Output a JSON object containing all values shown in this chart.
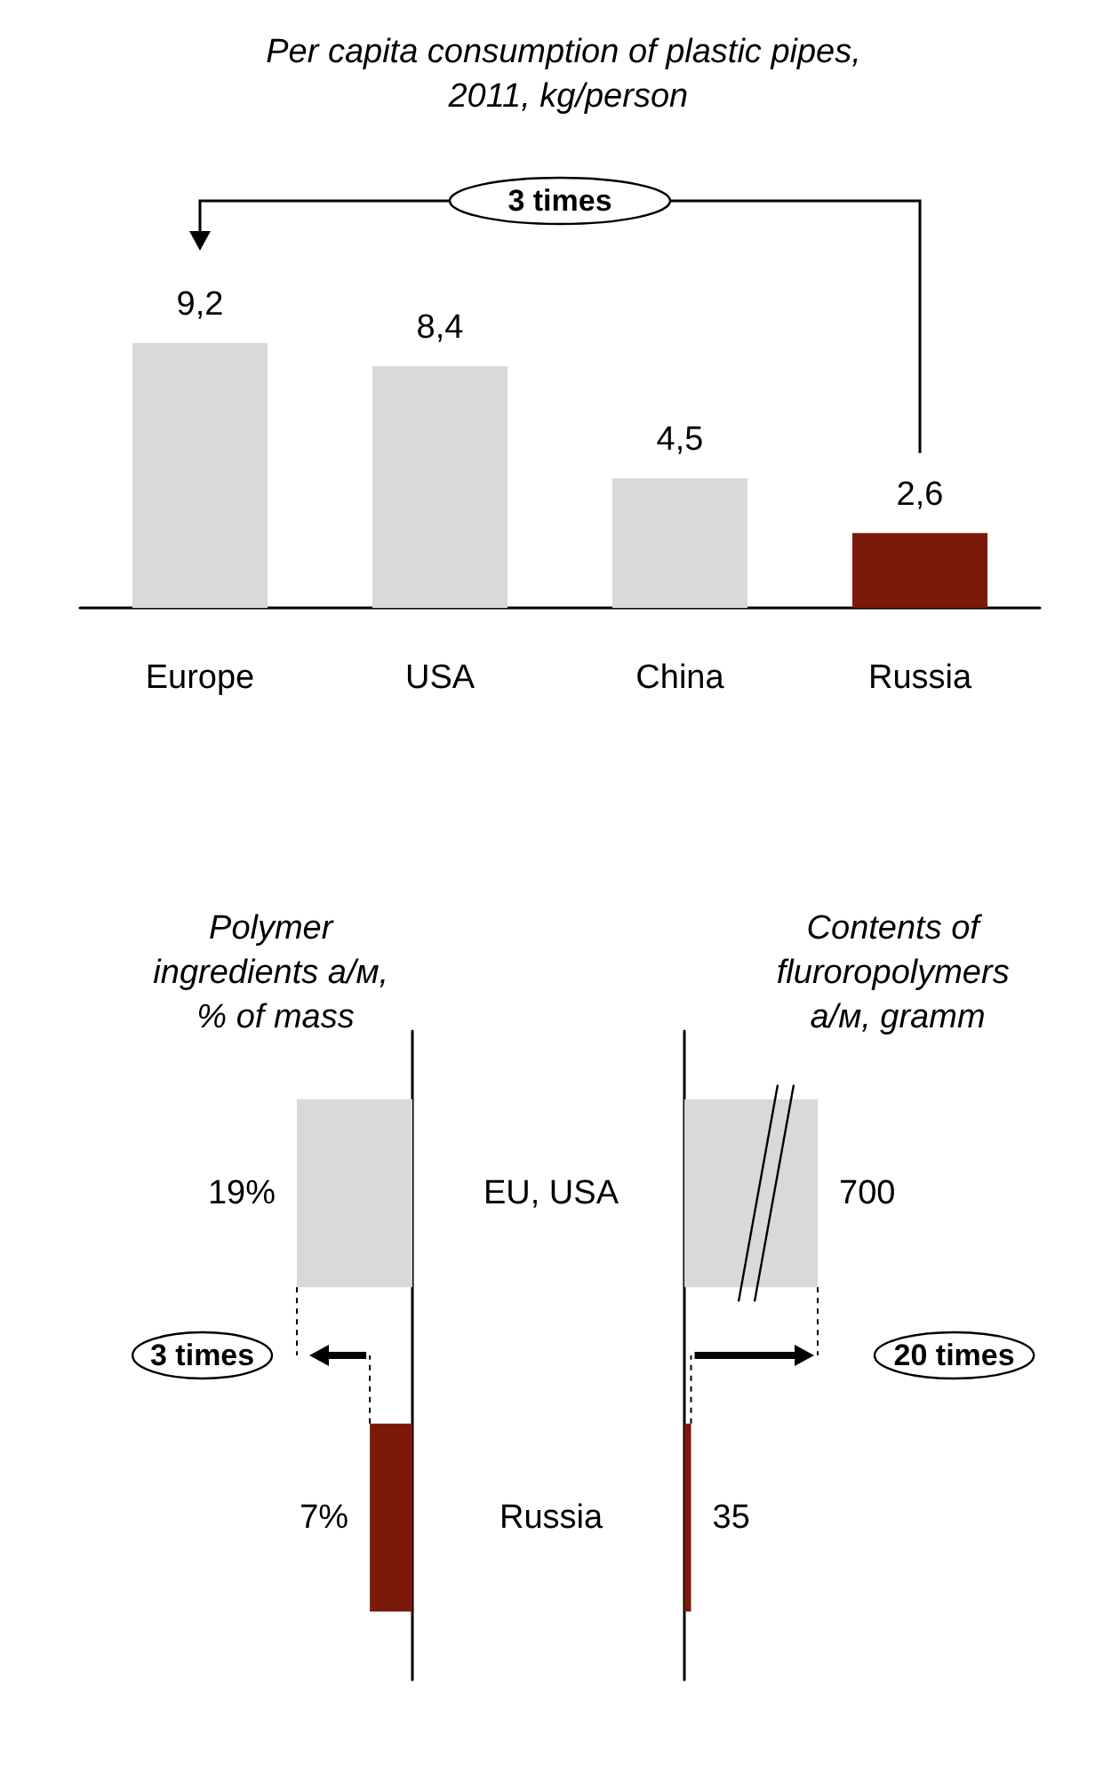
{
  "chart_data": [
    {
      "type": "bar",
      "title": "Per capita consumption of plastic pipes, 2011, kg/person",
      "categories": [
        "Europe",
        "USA",
        "China",
        "Russia"
      ],
      "values": [
        9.2,
        8.4,
        4.5,
        2.6
      ],
      "value_labels": [
        "9,2",
        "8,4",
        "4,5",
        "2,6"
      ],
      "colors": [
        "#d9d9d9",
        "#d9d9d9",
        "#d9d9d9",
        "#7b1a0a"
      ],
      "annotations": [
        "3 times"
      ]
    },
    {
      "type": "bar",
      "orientation": "horizontal",
      "title": "Polymer ingredients а/м, % of mass",
      "categories": [
        "EU, USA",
        "Russia"
      ],
      "values": [
        19,
        7
      ],
      "value_labels": [
        "19%",
        "7%"
      ],
      "colors": [
        "#d9d9d9",
        "#7b1a0a"
      ],
      "annotations": [
        "3 times"
      ]
    },
    {
      "type": "bar",
      "orientation": "horizontal",
      "title": "Contents of fluroropolymers а/м, gramm",
      "categories": [
        "EU, USA",
        "Russia"
      ],
      "values": [
        700,
        35
      ],
      "value_labels": [
        "700",
        "35"
      ],
      "colors": [
        "#d9d9d9",
        "#7b1a0a"
      ],
      "tick_labels": false,
      "annotations": [
        "20 times"
      ]
    }
  ]
}
